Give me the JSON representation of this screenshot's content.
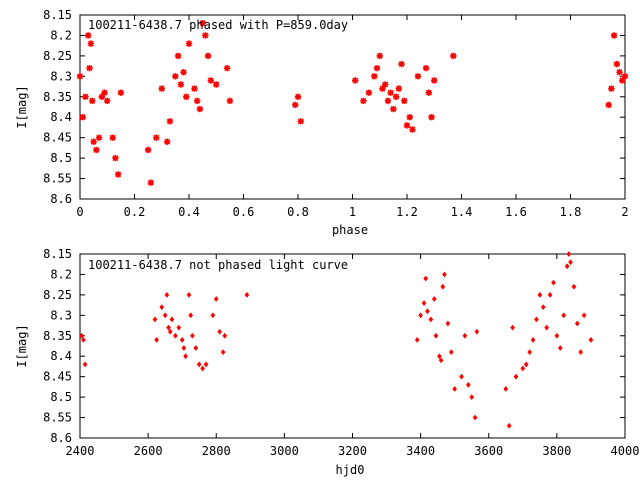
{
  "chart_data": [
    {
      "type": "scatter",
      "title": "100211-6438.7 phased with P=859.0day",
      "xlabel": "phase",
      "ylabel": "I[mag]",
      "xlim": [
        0,
        2
      ],
      "ylim": [
        8.6,
        8.15
      ],
      "y_inverted": true,
      "x_ticks": [
        "0",
        "0.2",
        "0.4",
        "0.6",
        "0.8",
        "1",
        "1.2",
        "1.4",
        "1.6",
        "1.8",
        "2"
      ],
      "y_ticks": [
        "8.15",
        "8.2",
        "8.25",
        "8.3",
        "8.35",
        "8.4",
        "8.45",
        "8.5",
        "8.55",
        "8.6"
      ],
      "grid": false,
      "marker": "star",
      "color": "#ff0000",
      "series": [
        {
          "x": [
            0.0,
            0.01,
            0.02,
            0.03,
            0.035,
            0.04,
            0.045,
            0.05,
            0.06,
            0.07,
            0.08,
            0.09,
            0.1,
            0.12,
            0.13,
            0.14,
            0.15,
            0.25,
            0.26,
            0.28,
            0.3,
            0.32,
            0.33,
            0.35,
            0.36,
            0.37,
            0.38,
            0.39,
            0.4,
            0.42,
            0.43,
            0.44,
            0.45,
            0.46,
            0.47,
            0.48,
            0.5,
            0.54,
            0.55,
            0.79,
            0.8,
            0.81,
            1.01,
            1.04,
            1.06,
            1.08,
            1.09,
            1.1,
            1.11,
            1.12,
            1.13,
            1.14,
            1.15,
            1.16,
            1.17,
            1.18,
            1.19,
            1.2,
            1.21,
            1.22,
            1.24,
            1.27,
            1.28,
            1.29,
            1.3,
            1.37,
            1.94,
            1.95,
            1.96,
            1.97,
            1.98,
            1.99,
            2.0
          ],
          "y": [
            8.3,
            8.4,
            8.35,
            8.2,
            8.28,
            8.22,
            8.36,
            8.46,
            8.48,
            8.45,
            8.35,
            8.34,
            8.36,
            8.45,
            8.5,
            8.54,
            8.34,
            8.48,
            8.56,
            8.45,
            8.33,
            8.46,
            8.41,
            8.3,
            8.25,
            8.32,
            8.29,
            8.35,
            8.22,
            8.33,
            8.36,
            8.38,
            8.17,
            8.2,
            8.25,
            8.31,
            8.32,
            8.28,
            8.36,
            8.37,
            8.35,
            8.41,
            8.31,
            8.36,
            8.34,
            8.3,
            8.28,
            8.25,
            8.33,
            8.32,
            8.36,
            8.34,
            8.38,
            8.35,
            8.33,
            8.27,
            8.36,
            8.42,
            8.4,
            8.43,
            8.3,
            8.28,
            8.34,
            8.4,
            8.31,
            8.25,
            8.37,
            8.33,
            8.2,
            8.27,
            8.29,
            8.31,
            8.3
          ]
        }
      ]
    },
    {
      "type": "scatter",
      "title": "100211-6438.7 not phased light curve",
      "xlabel": "hjd0",
      "ylabel": "I[mag]",
      "xlim": [
        2400,
        4000
      ],
      "ylim": [
        8.6,
        8.15
      ],
      "y_inverted": true,
      "x_ticks": [
        "2400",
        "2600",
        "2800",
        "3000",
        "3200",
        "3400",
        "3600",
        "3800",
        "4000"
      ],
      "y_ticks": [
        "8.15",
        "8.2",
        "8.25",
        "8.3",
        "8.35",
        "8.4",
        "8.45",
        "8.5",
        "8.55",
        "8.6"
      ],
      "grid": false,
      "marker": "diamond",
      "color": "#ff0000",
      "series": [
        {
          "x": [
            2405,
            2410,
            2415,
            2620,
            2625,
            2640,
            2650,
            2655,
            2660,
            2665,
            2670,
            2680,
            2690,
            2700,
            2705,
            2710,
            2720,
            2725,
            2730,
            2740,
            2750,
            2760,
            2770,
            2790,
            2800,
            2810,
            2820,
            2825,
            2890,
            3390,
            3400,
            3410,
            3415,
            3420,
            3430,
            3440,
            3445,
            3455,
            3460,
            3465,
            3470,
            3480,
            3490,
            3500,
            3520,
            3530,
            3540,
            3550,
            3560,
            3565,
            3650,
            3660,
            3670,
            3680,
            3700,
            3710,
            3720,
            3730,
            3740,
            3750,
            3760,
            3770,
            3780,
            3790,
            3800,
            3810,
            3820,
            3830,
            3835,
            3840,
            3850,
            3860,
            3870,
            3880,
            3900
          ],
          "y": [
            8.35,
            8.36,
            8.42,
            8.31,
            8.36,
            8.28,
            8.3,
            8.25,
            8.33,
            8.34,
            8.31,
            8.35,
            8.33,
            8.36,
            8.38,
            8.4,
            8.25,
            8.3,
            8.35,
            8.38,
            8.42,
            8.43,
            8.42,
            8.3,
            8.26,
            8.34,
            8.39,
            8.35,
            8.25,
            8.36,
            8.3,
            8.27,
            8.21,
            8.29,
            8.31,
            8.26,
            8.35,
            8.4,
            8.41,
            8.23,
            8.2,
            8.32,
            8.39,
            8.48,
            8.45,
            8.35,
            8.47,
            8.5,
            8.55,
            8.34,
            8.48,
            8.57,
            8.33,
            8.45,
            8.43,
            8.42,
            8.39,
            8.36,
            8.31,
            8.25,
            8.28,
            8.33,
            8.25,
            8.22,
            8.35,
            8.38,
            8.3,
            8.18,
            8.15,
            8.17,
            8.23,
            8.32,
            8.39,
            8.3,
            8.36
          ]
        }
      ]
    }
  ]
}
